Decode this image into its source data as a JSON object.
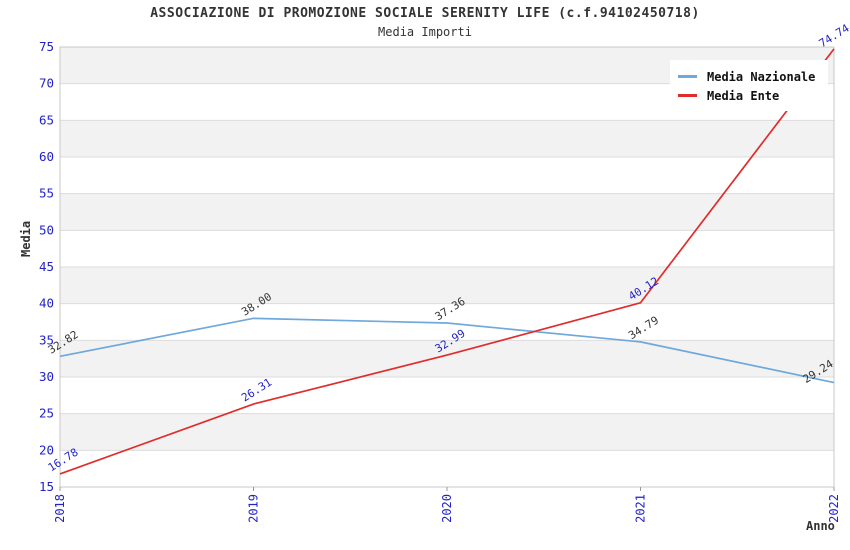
{
  "title": "ASSOCIAZIONE DI PROMOZIONE SOCIALE SERENITY LIFE (c.f.94102450718)",
  "subtitle": "Media Importi",
  "chart_data": {
    "type": "line",
    "x": [
      "2018",
      "2019",
      "2020",
      "2021",
      "2022"
    ],
    "series": [
      {
        "name": "Media Nazionale",
        "color": "#6fa8dc",
        "label_color": "#333333",
        "values": [
          32.82,
          38.0,
          37.36,
          34.79,
          29.24
        ]
      },
      {
        "name": "Media Ente",
        "color": "#e02c2c",
        "label_color": "#2222cc",
        "values": [
          16.78,
          26.31,
          32.99,
          40.12,
          74.74
        ]
      }
    ],
    "xlabel": "Anno",
    "ylabel": "Media",
    "ylim": [
      15,
      75
    ],
    "ytick_step": 5,
    "yticks": [
      15,
      20,
      25,
      30,
      35,
      40,
      45,
      50,
      55,
      60,
      65,
      70,
      75
    ],
    "grid": true,
    "legend_position": "top-right",
    "colors": {
      "axis_text": "#2222cc",
      "band_gray": "#f2f2f2",
      "band_white": "#ffffff",
      "gridline": "#dcdcdc",
      "frame": "#c8c8c8",
      "tick": "#999999"
    }
  }
}
